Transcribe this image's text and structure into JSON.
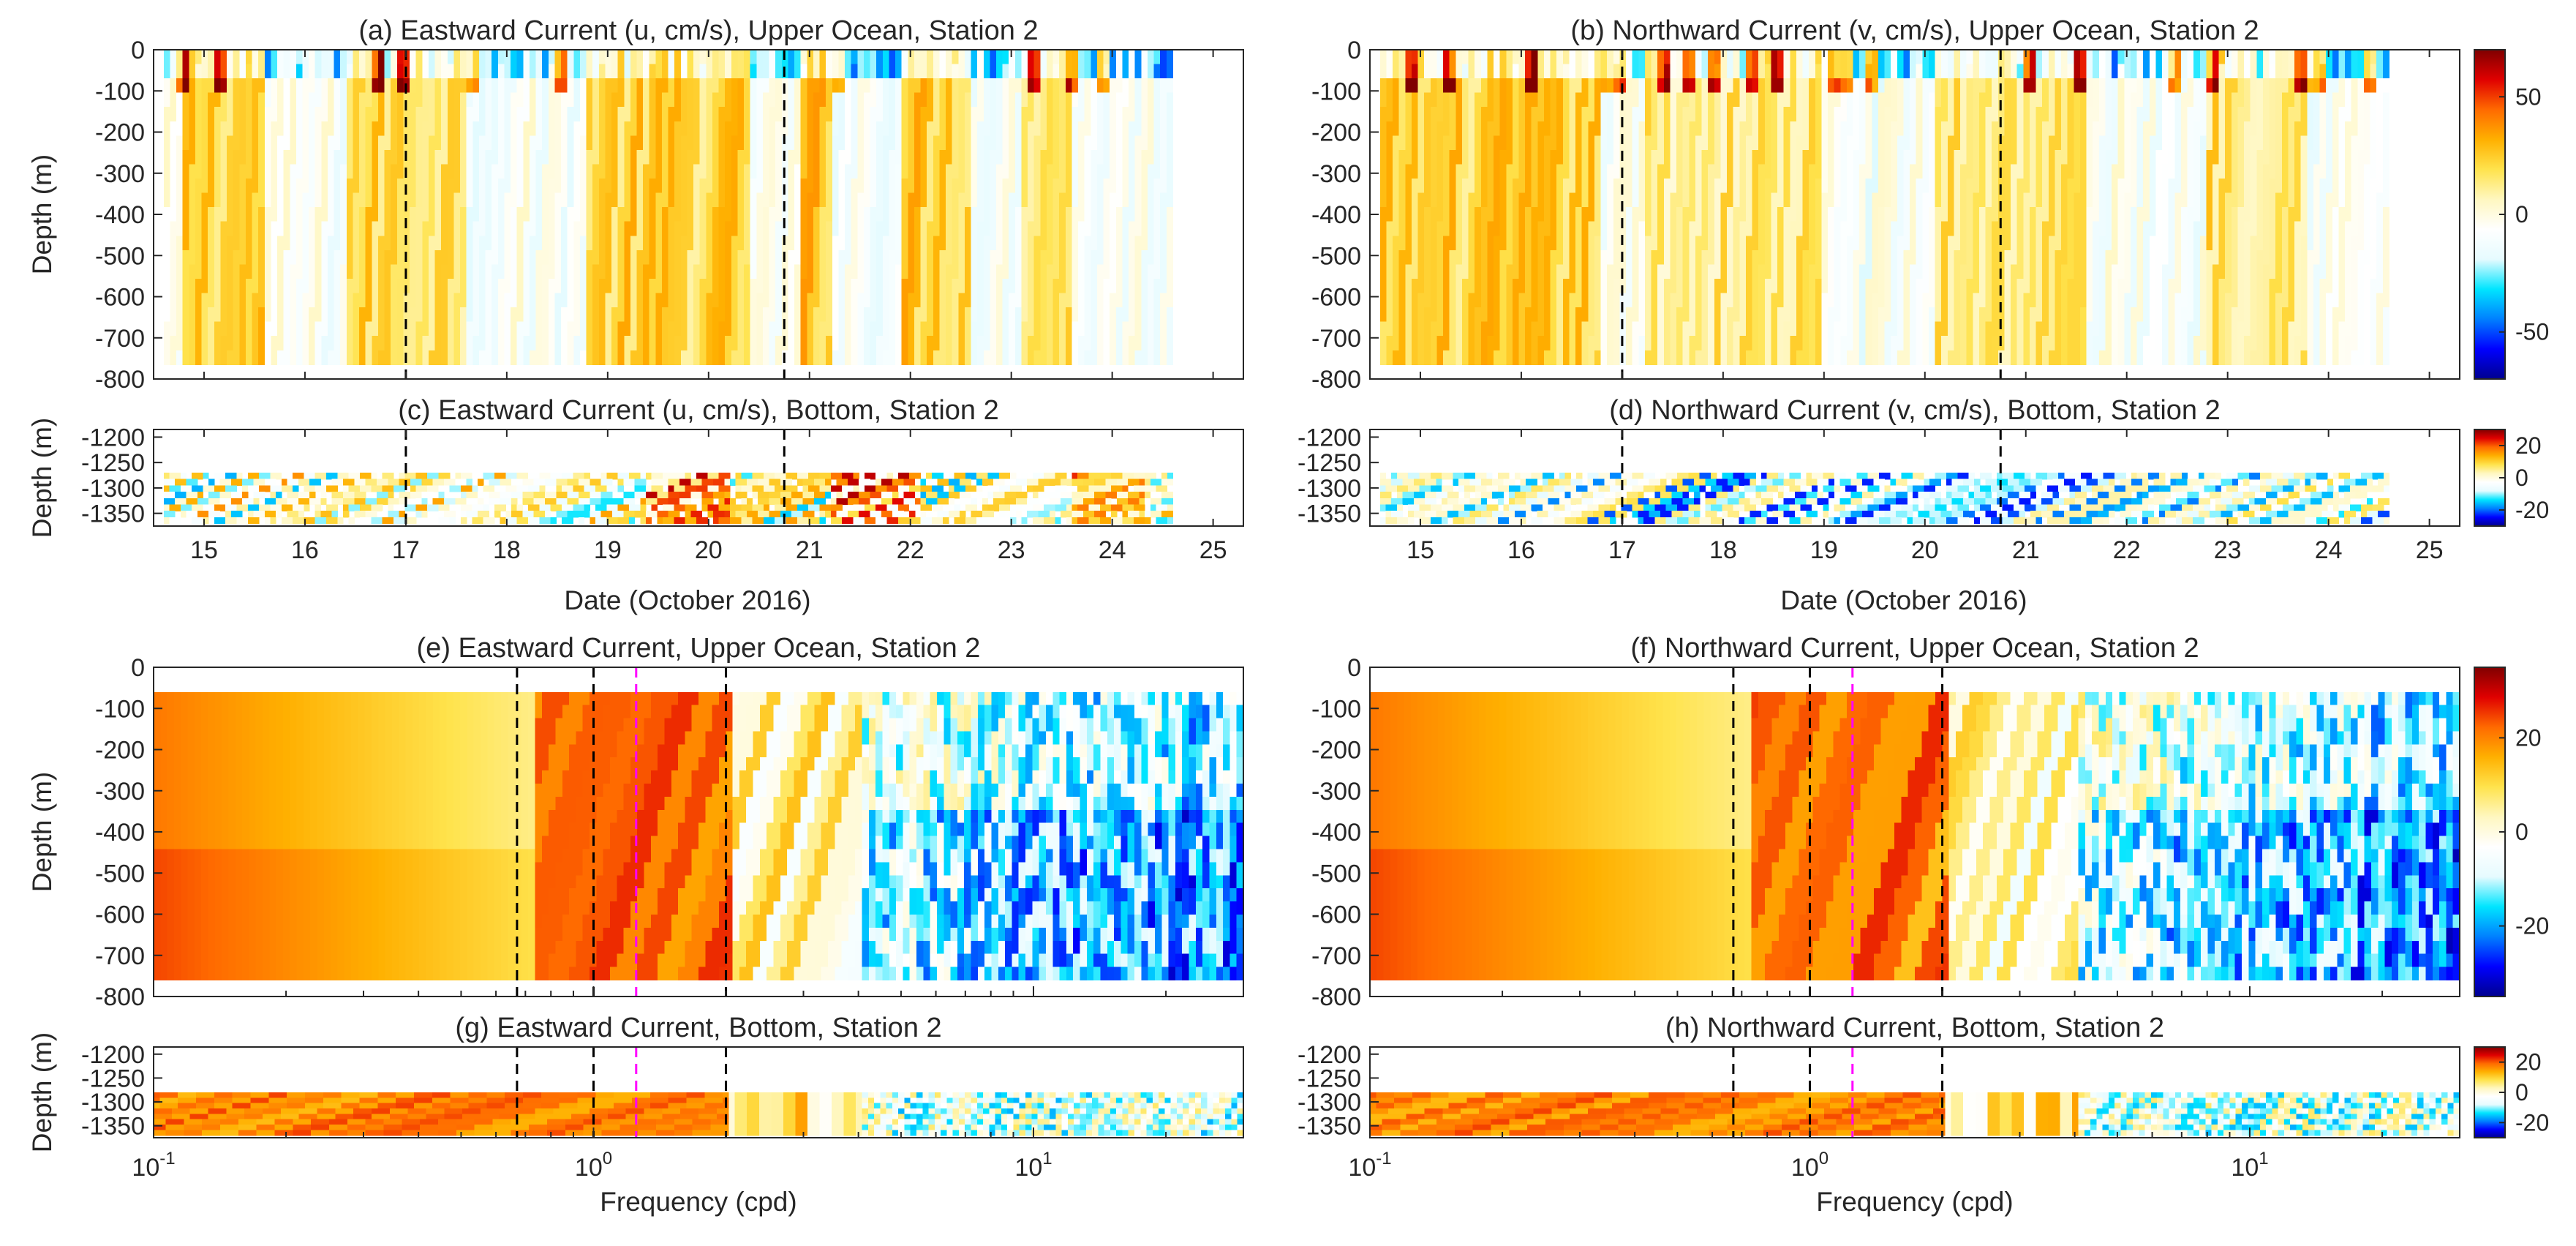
{
  "figure": {
    "colormap": [
      "#00008f",
      "#0000ff",
      "#0080ff",
      "#00e5ff",
      "#e6fbff",
      "#ffffff",
      "#fff7c0",
      "#ffe34d",
      "#ffb000",
      "#ff6a00",
      "#e00000",
      "#800000"
    ]
  },
  "chart_data": [
    {
      "id": "a",
      "type": "heatmap",
      "title": "(a) Eastward Current (u, cm/s), Upper Ocean, Station 2",
      "xlabel": "",
      "ylabel": "Depth (m)",
      "xlim": [
        14.5,
        25.3
      ],
      "ylim": [
        -800,
        0
      ],
      "xticks": [
        15,
        16,
        17,
        18,
        19,
        20,
        21,
        22,
        23,
        24,
        25
      ],
      "show_xticklabels": false,
      "yticks": [
        0,
        -100,
        -200,
        -300,
        -400,
        -500,
        -600,
        -700,
        -800
      ],
      "ytick_labels": [
        "0",
        "-100",
        "-200",
        "-300",
        "-400",
        "-500",
        "-600",
        "-700",
        "-800"
      ],
      "data_x": [
        14.6,
        24.6
      ],
      "data_y": [
        -765,
        0
      ],
      "vlines": [
        {
          "x": 17.0,
          "color": "black"
        },
        {
          "x": 20.75,
          "color": "black"
        }
      ],
      "clim": [
        -70,
        70
      ],
      "colorbar": false
    },
    {
      "id": "b",
      "type": "heatmap",
      "title": "(b) Northward Current (v, cm/s), Upper Ocean, Station 2",
      "xlabel": "",
      "ylabel": "",
      "xlim": [
        14.5,
        25.3
      ],
      "ylim": [
        -800,
        0
      ],
      "xticks": [
        15,
        16,
        17,
        18,
        19,
        20,
        21,
        22,
        23,
        24,
        25
      ],
      "show_xticklabels": false,
      "yticks": [
        0,
        -100,
        -200,
        -300,
        -400,
        -500,
        -600,
        -700,
        -800
      ],
      "ytick_labels": [
        "0",
        "-100",
        "-200",
        "-300",
        "-400",
        "-500",
        "-600",
        "-700",
        "-800"
      ],
      "data_x": [
        14.6,
        24.6
      ],
      "data_y": [
        -765,
        0
      ],
      "vlines": [
        {
          "x": 17.0,
          "color": "black"
        },
        {
          "x": 20.75,
          "color": "black"
        }
      ],
      "clim": [
        -70,
        70
      ],
      "colorbar": true,
      "colorbar_ticks": [
        50,
        0,
        -50
      ]
    },
    {
      "id": "c",
      "type": "heatmap",
      "title": "(c) Eastward Current (u, cm/s), Bottom, Station 2",
      "xlabel": "",
      "ylabel": "Depth (m)",
      "xlim": [
        14.5,
        25.3
      ],
      "ylim": [
        -1375,
        -1185
      ],
      "xticks": [
        15,
        16,
        17,
        18,
        19,
        20,
        21,
        22,
        23,
        24,
        25
      ],
      "show_xticklabels": true,
      "xtick_labels": [
        "15",
        "16",
        "17",
        "18",
        "19",
        "20",
        "21",
        "22",
        "23",
        "24",
        "25"
      ],
      "yticks": [
        -1200,
        -1250,
        -1300,
        -1350
      ],
      "ytick_labels": [
        "-1200",
        "-1250",
        "-1300",
        "-1350"
      ],
      "data_x": [
        14.6,
        24.6
      ],
      "data_y": [
        -1370,
        -1270
      ],
      "vlines": [
        {
          "x": 17.0,
          "color": "black"
        },
        {
          "x": 20.75,
          "color": "black"
        }
      ],
      "clim": [
        -30,
        30
      ],
      "colorbar": false
    },
    {
      "id": "d",
      "type": "heatmap",
      "title": "(d) Northward Current (v, cm/s), Bottom, Station 2",
      "xlabel": "",
      "ylabel": "",
      "xlim": [
        14.5,
        25.3
      ],
      "ylim": [
        -1375,
        -1185
      ],
      "xticks": [
        15,
        16,
        17,
        18,
        19,
        20,
        21,
        22,
        23,
        24,
        25
      ],
      "show_xticklabels": true,
      "xtick_labels": [
        "15",
        "16",
        "17",
        "18",
        "19",
        "20",
        "21",
        "22",
        "23",
        "24",
        "25"
      ],
      "yticks": [
        -1200,
        -1250,
        -1300,
        -1350
      ],
      "ytick_labels": [
        "-1200",
        "-1250",
        "-1300",
        "-1350"
      ],
      "data_x": [
        14.6,
        24.6
      ],
      "data_y": [
        -1370,
        -1270
      ],
      "vlines": [
        {
          "x": 17.0,
          "color": "black"
        },
        {
          "x": 20.75,
          "color": "black"
        }
      ],
      "clim": [
        -30,
        30
      ],
      "colorbar": true,
      "colorbar_ticks": [
        20,
        0,
        -20
      ]
    },
    {
      "id": "e",
      "type": "heatmap",
      "xscale": "log",
      "title": "(e) Eastward Current, Upper Ocean, Station 2",
      "xlabel": "",
      "ylabel": "Depth (m)",
      "xlim": [
        0.1,
        30
      ],
      "ylim": [
        -800,
        0
      ],
      "xticks": [
        0.1,
        1,
        10
      ],
      "show_xticklabels": false,
      "yticks": [
        0,
        -100,
        -200,
        -300,
        -400,
        -500,
        -600,
        -700,
        -800
      ],
      "ytick_labels": [
        "0",
        "-100",
        "-200",
        "-300",
        "-400",
        "-500",
        "-600",
        "-700",
        "-800"
      ],
      "data_x": [
        0.1,
        30
      ],
      "data_y": [
        -760,
        -60
      ],
      "vlines": [
        {
          "x": 0.67,
          "color": "black"
        },
        {
          "x": 1.0,
          "color": "black"
        },
        {
          "x": 1.25,
          "color": "magenta"
        },
        {
          "x": 2.0,
          "color": "black"
        }
      ],
      "clim": [
        -35,
        35
      ],
      "colorbar": false
    },
    {
      "id": "f",
      "type": "heatmap",
      "xscale": "log",
      "title": "(f) Northward Current, Upper Ocean, Station 2",
      "xlabel": "",
      "ylabel": "",
      "xlim": [
        0.1,
        30
      ],
      "ylim": [
        -800,
        0
      ],
      "xticks": [
        0.1,
        1,
        10
      ],
      "show_xticklabels": false,
      "yticks": [
        0,
        -100,
        -200,
        -300,
        -400,
        -500,
        -600,
        -700,
        -800
      ],
      "ytick_labels": [
        "0",
        "-100",
        "-200",
        "-300",
        "-400",
        "-500",
        "-600",
        "-700",
        "-800"
      ],
      "data_x": [
        0.1,
        30
      ],
      "data_y": [
        -760,
        -60
      ],
      "vlines": [
        {
          "x": 0.67,
          "color": "black"
        },
        {
          "x": 1.0,
          "color": "black"
        },
        {
          "x": 1.25,
          "color": "magenta"
        },
        {
          "x": 2.0,
          "color": "black"
        }
      ],
      "clim": [
        -35,
        35
      ],
      "colorbar": true,
      "colorbar_ticks": [
        20,
        0,
        -20
      ]
    },
    {
      "id": "g",
      "type": "heatmap",
      "xscale": "log",
      "title": "(g) Eastward Current, Bottom, Station 2",
      "xlabel": "Frequency (cpd)",
      "ylabel": "Depth (m)",
      "xlim": [
        0.1,
        30
      ],
      "ylim": [
        -1375,
        -1185
      ],
      "xticks": [
        0.1,
        1,
        10
      ],
      "show_xticklabels": true,
      "yticks": [
        -1200,
        -1250,
        -1300,
        -1350
      ],
      "ytick_labels": [
        "-1200",
        "-1250",
        "-1300",
        "-1350"
      ],
      "data_x": [
        0.1,
        30
      ],
      "data_y": [
        -1370,
        -1280
      ],
      "vlines": [
        {
          "x": 0.67,
          "color": "black"
        },
        {
          "x": 1.0,
          "color": "black"
        },
        {
          "x": 1.25,
          "color": "magenta"
        },
        {
          "x": 2.0,
          "color": "black"
        }
      ],
      "clim": [
        -30,
        30
      ],
      "colorbar": false
    },
    {
      "id": "h",
      "type": "heatmap",
      "xscale": "log",
      "title": "(h) Northward Current, Bottom, Station 2",
      "xlabel": "Frequency (cpd)",
      "ylabel": "",
      "xlim": [
        0.1,
        30
      ],
      "ylim": [
        -1375,
        -1185
      ],
      "xticks": [
        0.1,
        1,
        10
      ],
      "show_xticklabels": true,
      "yticks": [
        -1200,
        -1250,
        -1300,
        -1350
      ],
      "ytick_labels": [
        "-1200",
        "-1250",
        "-1300",
        "-1350"
      ],
      "data_x": [
        0.1,
        30
      ],
      "data_y": [
        -1370,
        -1280
      ],
      "vlines": [
        {
          "x": 0.67,
          "color": "black"
        },
        {
          "x": 1.0,
          "color": "black"
        },
        {
          "x": 1.25,
          "color": "magenta"
        },
        {
          "x": 2.0,
          "color": "black"
        }
      ],
      "clim": [
        -30,
        30
      ],
      "colorbar": true,
      "colorbar_ticks": [
        20,
        0,
        -20
      ]
    }
  ],
  "shared_labels": {
    "date_xlabel": "Date (October 2016)",
    "freq_tick_base": "10",
    "freq_tick_exps": [
      "-1",
      "0",
      "1"
    ]
  }
}
